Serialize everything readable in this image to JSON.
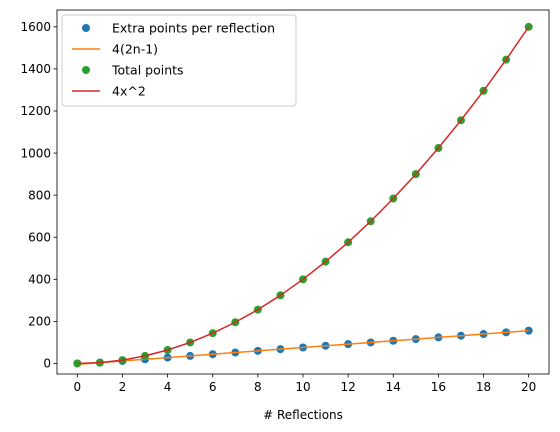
{
  "chart_data": {
    "type": "line",
    "title": "",
    "xlabel": "# Reflections",
    "ylabel": "",
    "xlim": [
      -0.9,
      20.9
    ],
    "ylim": [
      -50,
      1680
    ],
    "xticks": [
      0,
      2,
      4,
      6,
      8,
      10,
      12,
      14,
      16,
      18,
      20
    ],
    "yticks": [
      0,
      200,
      400,
      600,
      800,
      1000,
      1200,
      1400,
      1600
    ],
    "grid": false,
    "legend_position": "top-left",
    "series": [
      {
        "name": "Extra points per reflection",
        "style": "markers",
        "color": "#1f77b4",
        "x": [
          0,
          1,
          2,
          3,
          4,
          5,
          6,
          7,
          8,
          9,
          10,
          11,
          12,
          13,
          14,
          15,
          16,
          17,
          18,
          19,
          20
        ],
        "y": [
          0,
          4,
          12,
          20,
          28,
          36,
          44,
          52,
          60,
          68,
          76,
          84,
          92,
          100,
          108,
          116,
          124,
          132,
          140,
          148,
          156
        ]
      },
      {
        "name": "4(2n-1)",
        "style": "line",
        "color": "#ff7f0e",
        "x": [
          0,
          1,
          2,
          3,
          4,
          5,
          6,
          7,
          8,
          9,
          10,
          11,
          12,
          13,
          14,
          15,
          16,
          17,
          18,
          19,
          20
        ],
        "y": [
          -4,
          4,
          12,
          20,
          28,
          36,
          44,
          52,
          60,
          68,
          76,
          84,
          92,
          100,
          108,
          116,
          124,
          132,
          140,
          148,
          156
        ]
      },
      {
        "name": "Total points",
        "style": "markers",
        "color": "#2ca02c",
        "x": [
          0,
          1,
          2,
          3,
          4,
          5,
          6,
          7,
          8,
          9,
          10,
          11,
          12,
          13,
          14,
          15,
          16,
          17,
          18,
          19,
          20
        ],
        "y": [
          0,
          4,
          16,
          36,
          64,
          100,
          144,
          196,
          256,
          324,
          400,
          484,
          576,
          676,
          784,
          900,
          1024,
          1156,
          1296,
          1444,
          1600
        ]
      },
      {
        "name": "4x^2",
        "style": "line",
        "color": "#d62728",
        "x": [
          0,
          1,
          2,
          3,
          4,
          5,
          6,
          7,
          8,
          9,
          10,
          11,
          12,
          13,
          14,
          15,
          16,
          17,
          18,
          19,
          20
        ],
        "y": [
          0,
          4,
          16,
          36,
          64,
          100,
          144,
          196,
          256,
          324,
          400,
          484,
          576,
          676,
          784,
          900,
          1024,
          1156,
          1296,
          1444,
          1600
        ]
      }
    ]
  }
}
